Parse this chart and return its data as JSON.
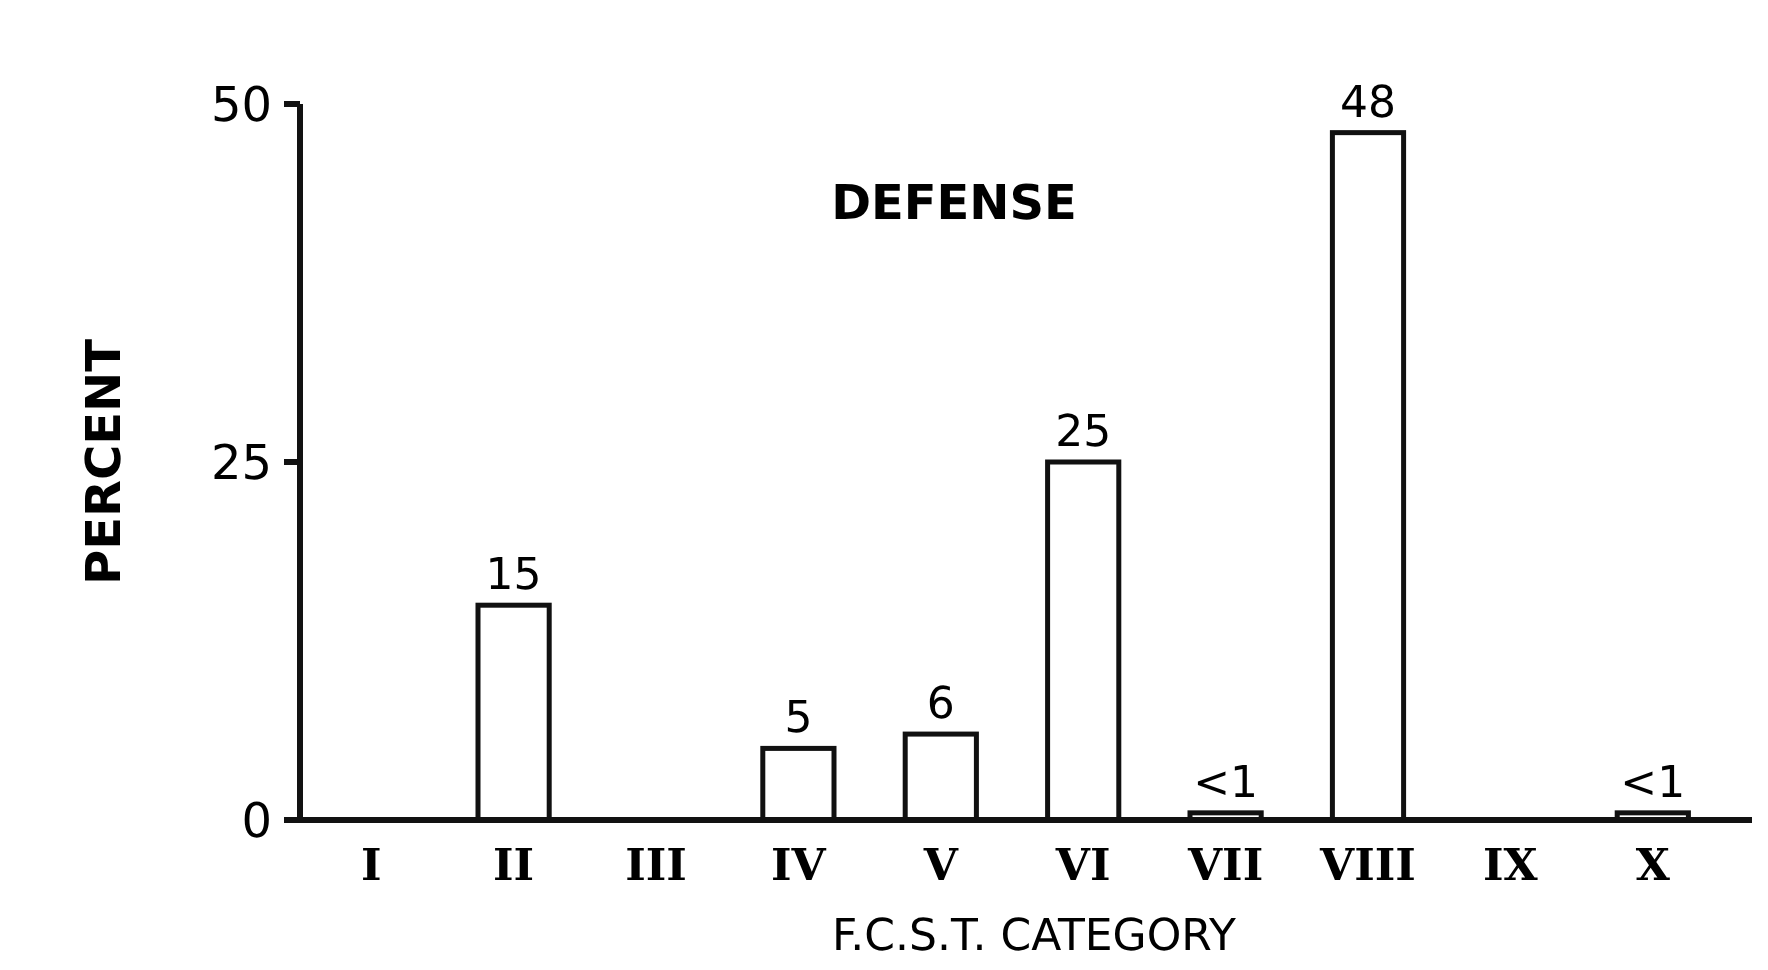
{
  "chart_data": {
    "type": "bar",
    "title": "DEFENSE",
    "xlabel": "F.C.S.T. CATEGORY",
    "ylabel": "PERCENT",
    "categories": [
      "I",
      "II",
      "III",
      "IV",
      "V",
      "VI",
      "VII",
      "VIII",
      "IX",
      "X"
    ],
    "values": [
      0,
      15,
      0,
      5,
      6,
      25,
      0.5,
      48,
      0,
      0.5
    ],
    "value_labels": [
      null,
      "15",
      null,
      "5",
      "6",
      "25",
      "<1",
      "48",
      null,
      "<1"
    ],
    "color": "#ffffff",
    "ylim": [
      0,
      50
    ],
    "yticks": [
      0,
      25,
      50
    ],
    "grid": false
  }
}
